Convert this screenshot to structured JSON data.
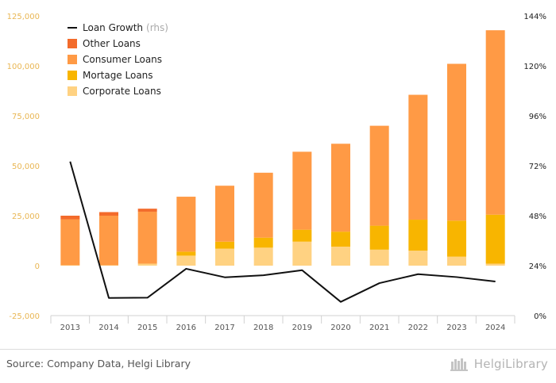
{
  "chart_data": {
    "type": "bar",
    "stacked": true,
    "categories": [
      "2013",
      "2014",
      "2015",
      "2016",
      "2017",
      "2018",
      "2019",
      "2020",
      "2021",
      "2022",
      "2023",
      "2024"
    ],
    "series": [
      {
        "name": "Corporate Loans",
        "color": "#ffd282",
        "values": [
          200,
          200,
          1000,
          5000,
          8500,
          9000,
          12000,
          9500,
          8000,
          7500,
          4500,
          1000
        ]
      },
      {
        "name": "Mortage Loans",
        "color": "#f8b500",
        "values": [
          0,
          0,
          0,
          2000,
          3500,
          5000,
          6000,
          7500,
          12000,
          15500,
          18000,
          24500
        ]
      },
      {
        "name": "Consumer Loans",
        "color": "#ff9a45",
        "values": [
          23000,
          24800,
          26000,
          27500,
          28000,
          32500,
          39000,
          44000,
          50000,
          62500,
          78500,
          92300
        ]
      },
      {
        "name": "Other Loans",
        "color": "#f36b2b",
        "values": [
          1800,
          1800,
          1500,
          0,
          0,
          0,
          0,
          0,
          0,
          0,
          0,
          0
        ]
      }
    ],
    "line_series": {
      "name": "Loan Growth",
      "name_suffix": "(rhs)",
      "color": "#111111",
      "axis": "right",
      "values": [
        74,
        8.5,
        8.6,
        22.5,
        18.4,
        19.4,
        21.8,
        6.6,
        15.6,
        19.9,
        18.5,
        16.4
      ]
    },
    "legend_order": [
      "Loan Growth",
      "Other Loans",
      "Consumer Loans",
      "Mortage Loans",
      "Corporate Loans"
    ],
    "legend_position": "top-left",
    "y_left": {
      "ylim": [
        -25000,
        125000
      ],
      "ticks": [
        -25000,
        0,
        25000,
        50000,
        75000,
        100000,
        125000
      ],
      "tick_labels": [
        "-25,000",
        "0",
        "25,000",
        "50,000",
        "75,000",
        "100,000",
        "125,000"
      ]
    },
    "y_right": {
      "ylim": [
        0,
        144
      ],
      "ticks": [
        0,
        24,
        48,
        72,
        96,
        120,
        144
      ],
      "tick_labels": [
        "0%",
        "24%",
        "48%",
        "72%",
        "96%",
        "120%",
        "144%"
      ]
    },
    "grid": false,
    "title": "",
    "xlabel": "",
    "ylabel": ""
  },
  "footer": {
    "source": "Source: Company Data, Helgi Library",
    "logo_text": "HelgiLibrary"
  }
}
